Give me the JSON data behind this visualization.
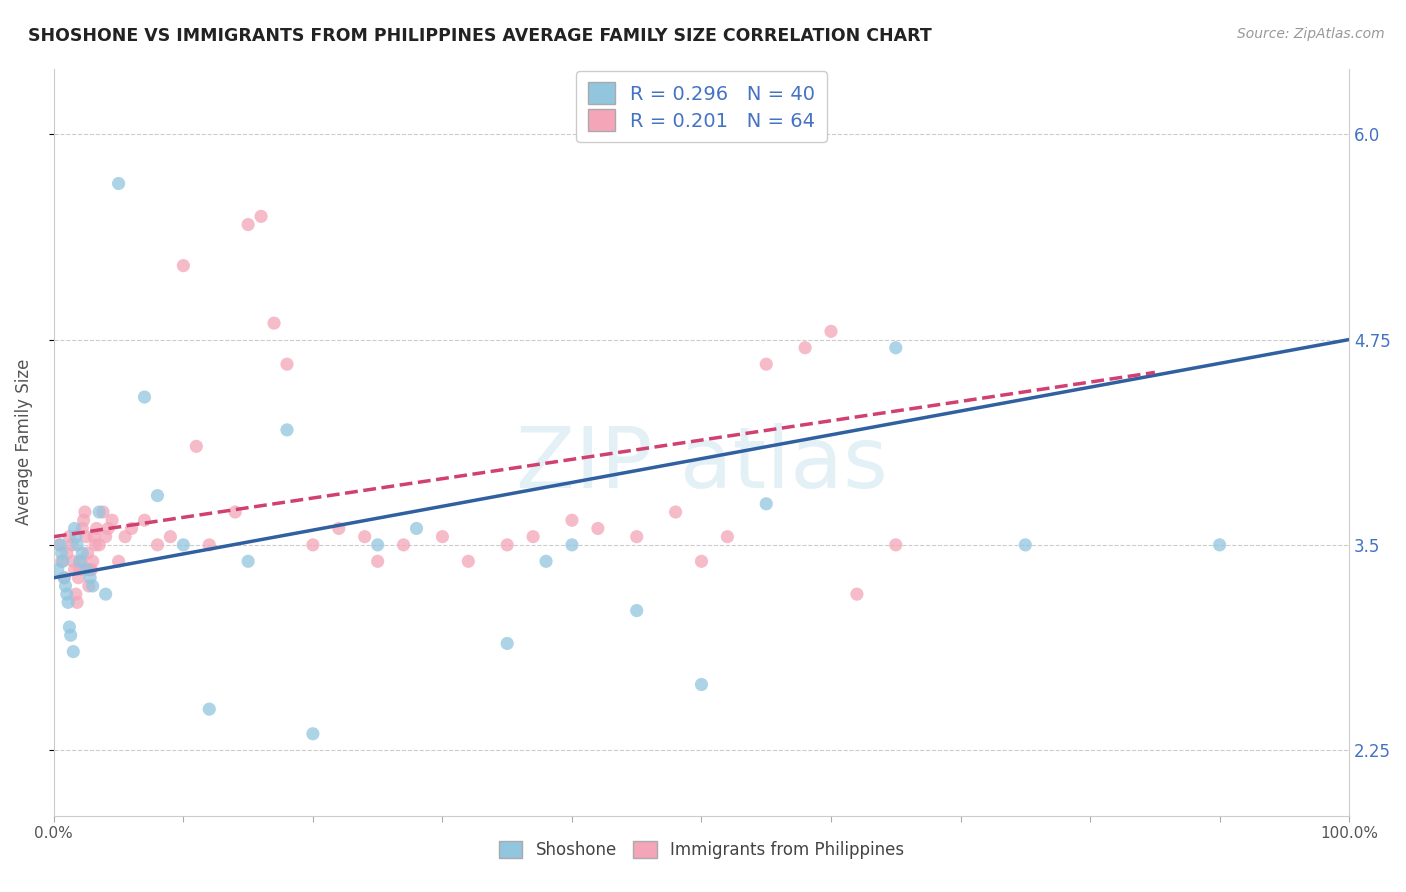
{
  "title": "SHOSHONE VS IMMIGRANTS FROM PHILIPPINES AVERAGE FAMILY SIZE CORRELATION CHART",
  "source": "Source: ZipAtlas.com",
  "ylabel": "Average Family Size",
  "xlim": [
    0,
    100
  ],
  "ylim": [
    1.85,
    6.4
  ],
  "yticks": [
    2.25,
    3.5,
    4.75,
    6.0
  ],
  "xtick_positions": [
    0,
    10,
    20,
    30,
    40,
    50,
    60,
    70,
    80,
    90,
    100
  ],
  "xticklabels_visible": [
    "0.0%",
    "100.0%"
  ],
  "blue_color": "#92c5de",
  "pink_color": "#f4a5b8",
  "blue_line_color": "#3060a0",
  "pink_line_color": "#d04070",
  "right_axis_color": "#4472C4",
  "shoshone_x": [
    0.3,
    0.5,
    0.6,
    0.7,
    0.8,
    0.9,
    1.0,
    1.1,
    1.2,
    1.3,
    1.5,
    1.6,
    1.7,
    1.8,
    2.0,
    2.2,
    2.5,
    2.8,
    3.0,
    3.5,
    4.0,
    5.0,
    7.0,
    8.0,
    10.0,
    12.0,
    15.0,
    18.0,
    20.0,
    25.0,
    28.0,
    35.0,
    38.0,
    40.0,
    45.0,
    50.0,
    55.0,
    65.0,
    75.0,
    90.0
  ],
  "shoshone_y": [
    3.35,
    3.5,
    3.45,
    3.4,
    3.3,
    3.25,
    3.2,
    3.15,
    3.0,
    2.95,
    2.85,
    3.6,
    3.55,
    3.5,
    3.4,
    3.45,
    3.35,
    3.3,
    3.25,
    3.7,
    3.2,
    5.7,
    4.4,
    3.8,
    3.5,
    2.5,
    3.4,
    4.2,
    2.35,
    3.5,
    3.6,
    2.9,
    3.4,
    3.5,
    3.1,
    2.65,
    3.75,
    4.7,
    3.5,
    3.5
  ],
  "phil_x": [
    0.4,
    0.6,
    0.8,
    1.0,
    1.2,
    1.4,
    1.5,
    1.6,
    1.7,
    1.8,
    1.9,
    2.0,
    2.1,
    2.2,
    2.3,
    2.4,
    2.5,
    2.6,
    2.7,
    2.8,
    2.9,
    3.0,
    3.1,
    3.2,
    3.3,
    3.5,
    3.8,
    4.0,
    4.2,
    4.5,
    5.0,
    5.5,
    6.0,
    7.0,
    8.0,
    9.0,
    10.0,
    11.0,
    12.0,
    14.0,
    15.0,
    16.0,
    17.0,
    18.0,
    20.0,
    22.0,
    24.0,
    25.0,
    27.0,
    30.0,
    32.0,
    35.0,
    37.0,
    40.0,
    42.0,
    45.0,
    48.0,
    50.0,
    52.0,
    55.0,
    58.0,
    60.0,
    62.0,
    65.0
  ],
  "phil_y": [
    3.5,
    3.4,
    3.3,
    3.45,
    3.55,
    3.5,
    3.4,
    3.35,
    3.2,
    3.15,
    3.3,
    3.35,
    3.4,
    3.6,
    3.65,
    3.7,
    3.55,
    3.45,
    3.25,
    3.35,
    3.35,
    3.4,
    3.55,
    3.5,
    3.6,
    3.5,
    3.7,
    3.55,
    3.6,
    3.65,
    3.4,
    3.55,
    3.6,
    3.65,
    3.5,
    3.55,
    5.2,
    4.1,
    3.5,
    3.7,
    5.45,
    5.5,
    4.85,
    4.6,
    3.5,
    3.6,
    3.55,
    3.4,
    3.5,
    3.55,
    3.4,
    3.5,
    3.55,
    3.65,
    3.6,
    3.55,
    3.7,
    3.4,
    3.55,
    4.6,
    4.7,
    4.8,
    3.2,
    3.5
  ],
  "blue_line_x0": 0,
  "blue_line_y0": 3.3,
  "blue_line_x1": 100,
  "blue_line_y1": 4.75,
  "pink_line_x0": 0,
  "pink_line_y0": 3.55,
  "pink_line_x1": 85,
  "pink_line_y1": 4.55
}
